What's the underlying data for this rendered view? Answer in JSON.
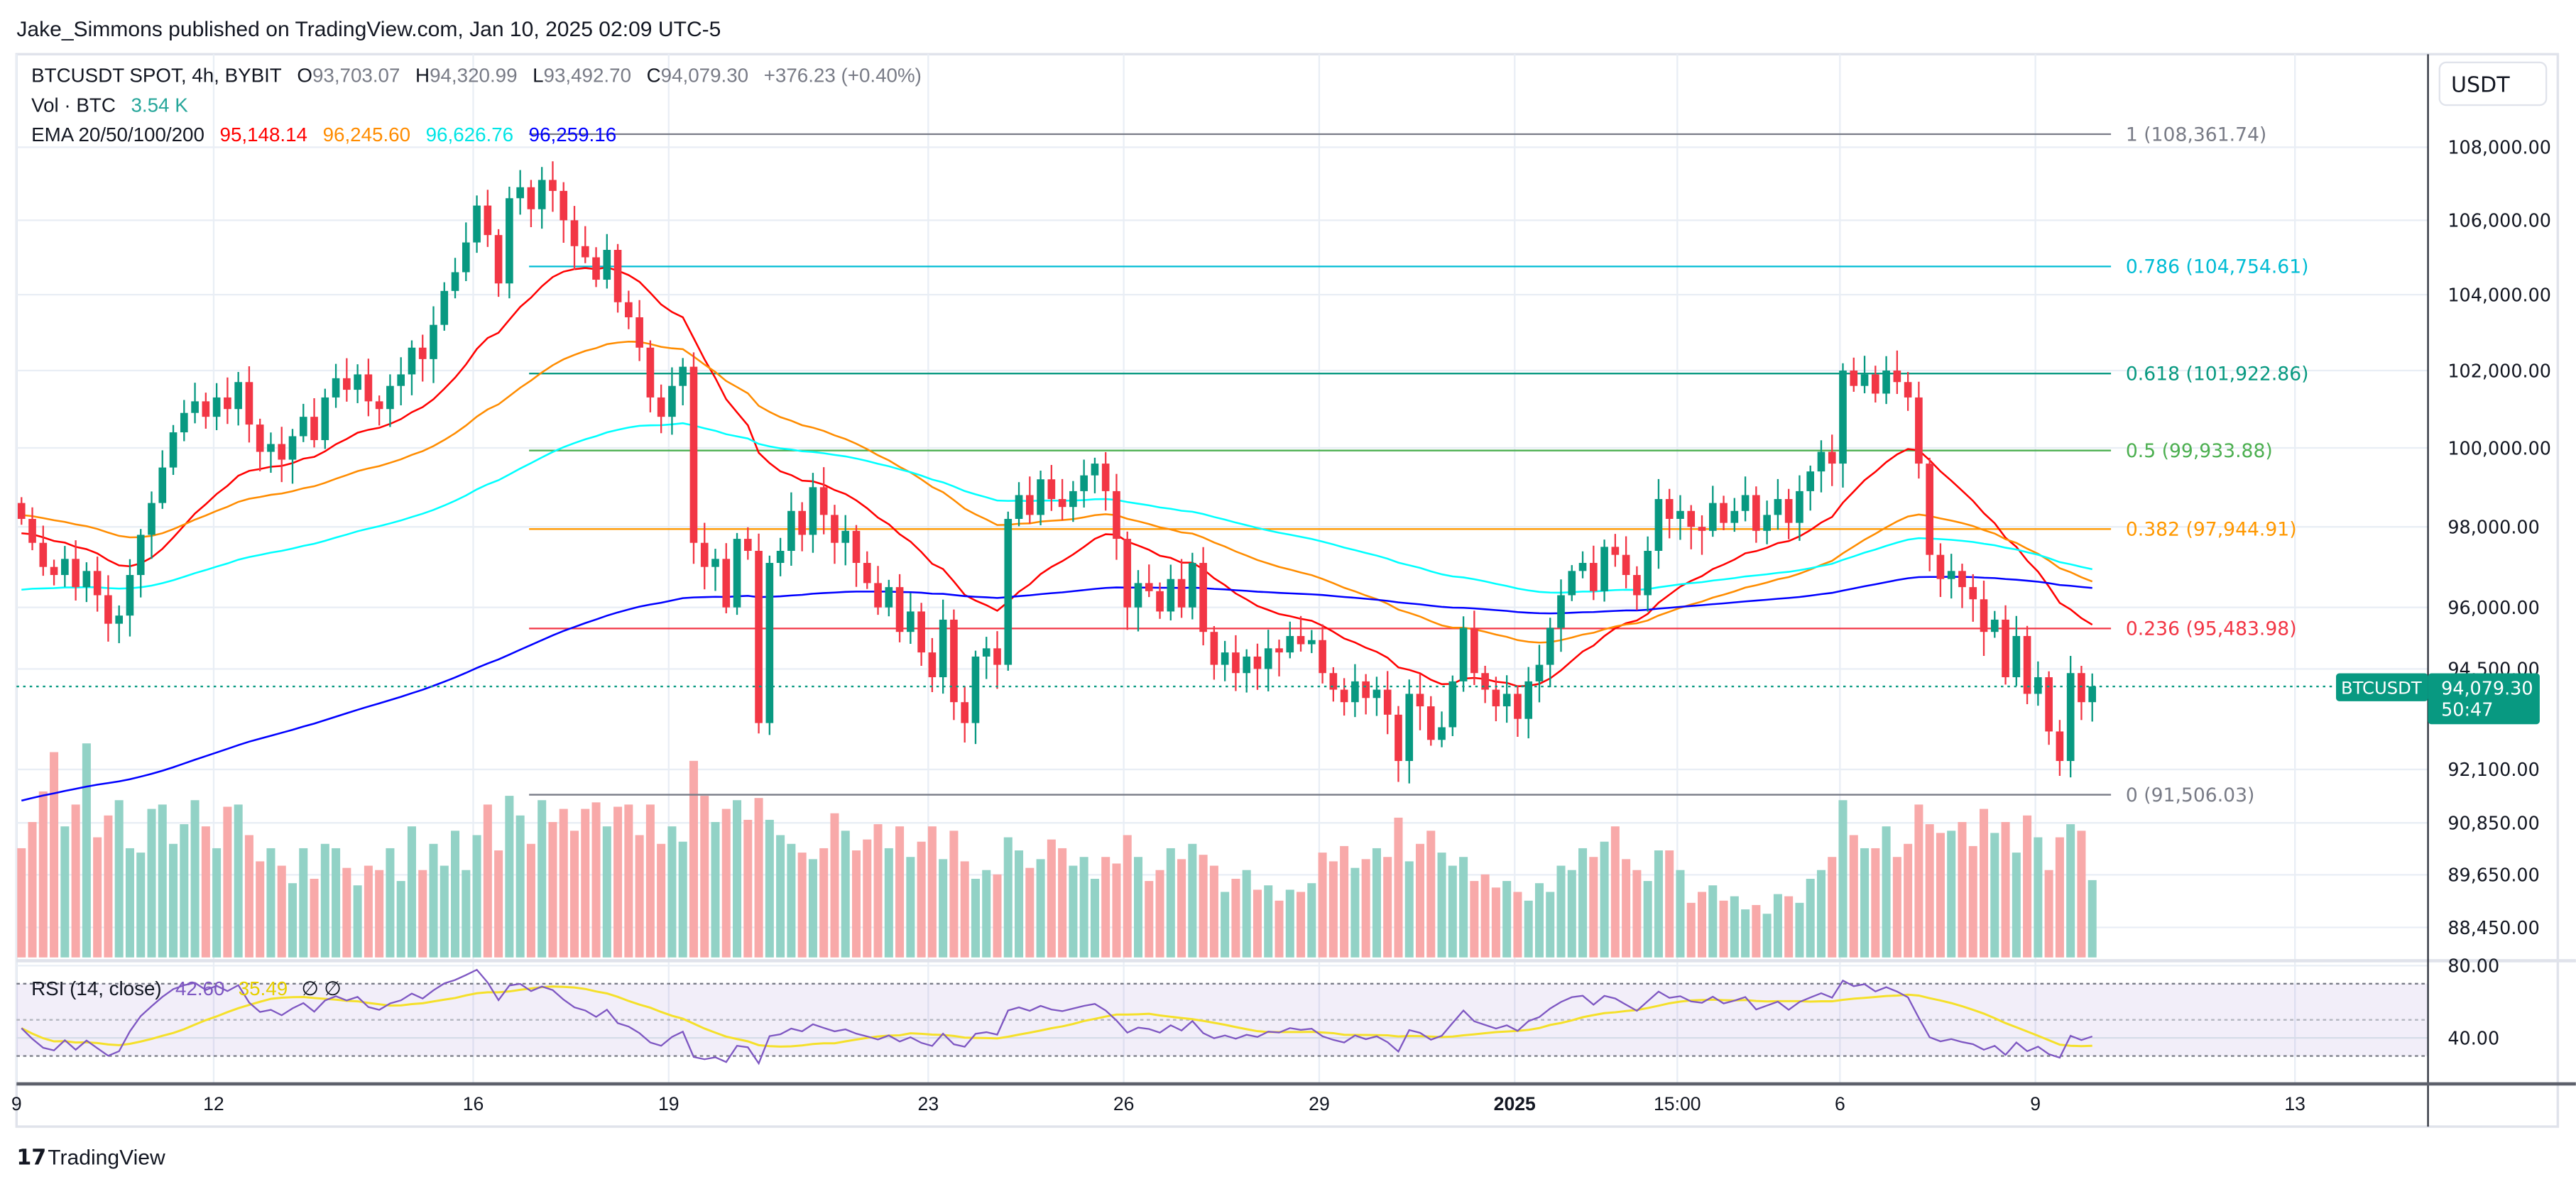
{
  "header": {
    "published": "Jake_Simmons published on TradingView.com, Jan 10, 2025 02:09 UTC-5"
  },
  "legend": {
    "symbol": "BTCUSDT SPOT, 4h, BYBIT",
    "o_label": "O",
    "open": "93,703.07",
    "h_label": "H",
    "high": "94,320.99",
    "l_label": "L",
    "low": "93,492.70",
    "c_label": "C",
    "close": "94,079.30",
    "change": "+376.23 (+0.40%)",
    "vol_label": "Vol · BTC",
    "vol_value": "3.54 K",
    "ema_label": "EMA 20/50/100/200",
    "ema20": "95,148.14",
    "ema50": "96,245.60",
    "ema100": "96,626.76",
    "ema200": "96,259.16"
  },
  "price_axis": {
    "currency": "USDT",
    "labels": [
      "108,000.00",
      "106,000.00",
      "104,000.00",
      "102,000.00",
      "100,000.00",
      "98,000.00",
      "96,000.00",
      "94,500.00",
      "92,100.00",
      "90,850.00",
      "89,650.00",
      "88,450.00"
    ],
    "last_symbol": "BTCUSDT",
    "last_price": "94,079.30",
    "countdown": "50:47"
  },
  "rsi": {
    "label": "RSI (14, close)",
    "value": "42.60",
    "ma_value": "35.49",
    "extra": "∅ ∅",
    "axis_labels": [
      "80.00",
      "40.00"
    ]
  },
  "time_axis": {
    "labels": [
      "9",
      "12",
      "16",
      "19",
      "23",
      "26",
      "29",
      "2025",
      "15:00",
      "6",
      "9",
      "13"
    ]
  },
  "footer": {
    "brand": "TradingView"
  },
  "colors": {
    "up": "#089981",
    "down": "#F23645",
    "ema20": "#FF0000",
    "ema50": "#FF8C00",
    "ema100": "#00FFFF",
    "ema200": "#0000FF",
    "rsi": "#7E57C2",
    "rsi_ma": "#F5E02A"
  },
  "chart_data": {
    "type": "candlestick",
    "symbol": "BTCUSDT",
    "interval": "4h",
    "y_scale": "log",
    "fib_levels": [
      {
        "level": "1",
        "price": 108361.74,
        "label": "1 (108,361.74)",
        "color": "#787B86"
      },
      {
        "level": "0.786",
        "price": 104754.61,
        "label": "0.786 (104,754.61)",
        "color": "#00BCD4"
      },
      {
        "level": "0.618",
        "price": 101922.86,
        "label": "0.618 (101,922.86)",
        "color": "#089981"
      },
      {
        "level": "0.5",
        "price": 99933.88,
        "label": "0.5 (99,933.88)",
        "color": "#4CAF50"
      },
      {
        "level": "0.382",
        "price": 97944.91,
        "label": "0.382 (97,944.91)",
        "color": "#FF9800"
      },
      {
        "level": "0.236",
        "price": 95483.98,
        "label": "0.236 (95,483.98)",
        "color": "#F23645"
      },
      {
        "level": "0",
        "price": 91506.03,
        "label": "0 (91,506.03)",
        "color": "#787B86"
      }
    ],
    "closes": [
      98200,
      97600,
      97000,
      96800,
      97200,
      96500,
      96900,
      96300,
      95600,
      95800,
      96800,
      97800,
      98600,
      99500,
      100400,
      100900,
      101200,
      100800,
      101300,
      101000,
      101700,
      100600,
      99900,
      100100,
      99700,
      100300,
      100800,
      100200,
      101300,
      101800,
      101500,
      101900,
      101200,
      101000,
      101600,
      101900,
      102600,
      102300,
      103200,
      104100,
      104600,
      105400,
      106400,
      105600,
      104300,
      106600,
      106900,
      106300,
      107100,
      106800,
      106000,
      105300,
      105000,
      104400,
      105200,
      103800,
      103400,
      102600,
      101300,
      100800,
      101600,
      102100,
      97600,
      97000,
      97200,
      96000,
      97700,
      97400,
      93200,
      97100,
      97400,
      98400,
      97800,
      99000,
      98300,
      97600,
      97900,
      97100,
      96600,
      96000,
      96500,
      95400,
      95900,
      94900,
      94300,
      95700,
      93700,
      93200,
      94800,
      95000,
      94600,
      98200,
      98800,
      98300,
      99200,
      98700,
      98500,
      98900,
      99300,
      99600,
      98900,
      97700,
      96000,
      96600,
      96400,
      95900,
      96700,
      96000,
      97100,
      95400,
      94600,
      94900,
      94400,
      94800,
      94500,
      95000,
      94900,
      95300,
      95100,
      95200,
      94400,
      94000,
      93700,
      94200,
      93800,
      94000,
      93400,
      92300,
      93900,
      93600,
      92800,
      93100,
      94200,
      95500,
      94400,
      94000,
      93600,
      93900,
      93300,
      94200,
      94600,
      95500,
      96300,
      96900,
      97100,
      96400,
      97500,
      97300,
      96800,
      96300,
      97400,
      98700,
      98200,
      98400,
      98000,
      97900,
      98600,
      98100,
      98400,
      98800,
      97900,
      98300,
      98700,
      98100,
      98900,
      99400,
      99900,
      99600,
      102000,
      101600,
      101900,
      101400,
      102000,
      101700,
      101300,
      99600,
      97300,
      96700,
      96900,
      96500,
      96200,
      95400,
      95700,
      94300,
      95300,
      93900,
      94300,
      93000,
      92300,
      94400,
      93700,
      94079.3
    ],
    "volumes_k": [
      5.0,
      6.2,
      7.6,
      9.4,
      6.0,
      7.0,
      9.8,
      5.5,
      6.5,
      7.2,
      5.0,
      4.8,
      6.8,
      7.0,
      5.2,
      6.1,
      7.2,
      6.0,
      5.0,
      6.9,
      7.0,
      5.6,
      4.4,
      5.0,
      4.2,
      3.4,
      5.0,
      3.6,
      5.2,
      5.0,
      4.1,
      3.3,
      4.2,
      4.0,
      5.0,
      3.5,
      6.0,
      4.0,
      5.2,
      4.2,
      5.8,
      4.0,
      5.6,
      7.0,
      4.9,
      7.4,
      6.5,
      5.2,
      7.2,
      6.2,
      6.8,
      5.8,
      6.8,
      7.1,
      6.0,
      6.9,
      7.0,
      5.6,
      7.0,
      5.2,
      6.0,
      5.3,
      9.0,
      7.4,
      6.2,
      6.8,
      7.2,
      6.3,
      7.3,
      6.3,
      5.6,
      5.2,
      4.8,
      4.5,
      5.0,
      6.6,
      5.8,
      4.9,
      5.4,
      6.1,
      5.0,
      6.0,
      4.6,
      5.3,
      6.0,
      4.5,
      5.8,
      4.4,
      3.6,
      4.0,
      3.8,
      5.5,
      4.9,
      4.1,
      4.5,
      5.4,
      5.0,
      4.2,
      4.6,
      3.6,
      4.6,
      4.3,
      5.6,
      4.6,
      3.5,
      4.0,
      5.0,
      4.5,
      5.2,
      4.7,
      4.2,
      3.0,
      3.6,
      4.0,
      3.1,
      3.3,
      2.6,
      3.1,
      3.0,
      3.4,
      4.8,
      4.4,
      5.1,
      4.1,
      4.5,
      5.0,
      4.6,
      6.4,
      4.4,
      5.2,
      5.8,
      4.8,
      4.2,
      4.6,
      3.5,
      3.8,
      3.2,
      3.5,
      3.0,
      2.6,
      3.4,
      3.0,
      4.2,
      4.0,
      5.0,
      4.6,
      5.3,
      6.0,
      4.5,
      4.0,
      3.5,
      4.9,
      4.9,
      4.0,
      2.5,
      3.0,
      3.3,
      2.6,
      2.8,
      2.2,
      2.4,
      2.0,
      2.9,
      2.8,
      2.5,
      3.6,
      4.0,
      4.6,
      7.2,
      5.6,
      5.0,
      5.0,
      6.0,
      4.6,
      5.2,
      7.0,
      6.1,
      5.7,
      5.8,
      6.2,
      5.1,
      6.8,
      5.7,
      6.2,
      4.8,
      6.5,
      5.5,
      4.0,
      5.5,
      6.1,
      5.8,
      3.54
    ]
  }
}
